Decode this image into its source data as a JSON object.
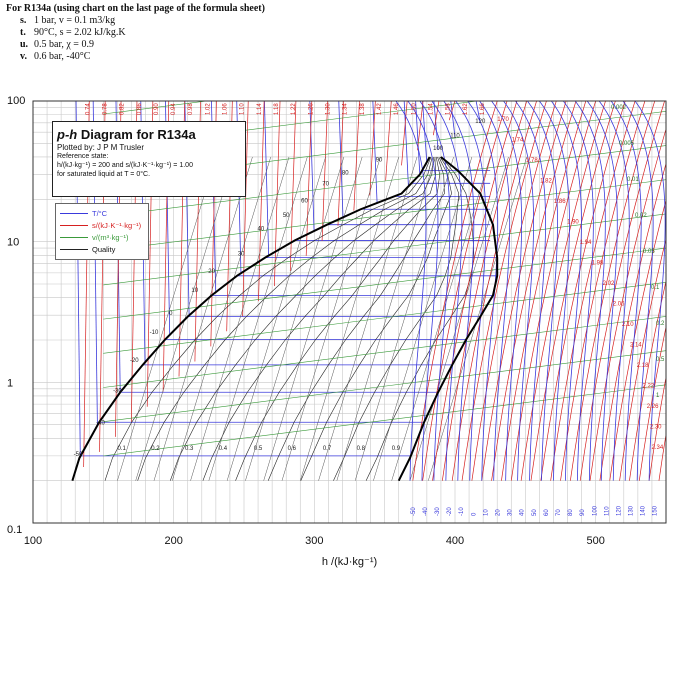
{
  "header": {
    "title": "For R134a (using chart on the last page of the formula sheet)",
    "questions": [
      {
        "letter": "s.",
        "text": "1 bar, v = 0.1 m3/kg"
      },
      {
        "letter": "t.",
        "text": "90°C, s = 2.02 kJ/kg.K"
      },
      {
        "letter": "u.",
        "text": "0.5 bar, χ = 0.9"
      },
      {
        "letter": "v.",
        "text": "0.6 bar, -40°C"
      }
    ]
  },
  "legend": {
    "title_italic": "p-h",
    "title_rest": " Diagram for R134a",
    "plotted_by": "Plotted by: J P M Trusler",
    "reference_state": "Reference state:",
    "reference_line1": "h/(kJ·kg⁻¹) = 200 and s/(kJ·K⁻¹·kg⁻¹) = 1.00",
    "reference_line2": "for saturated liquid at T = 0°C."
  },
  "key": {
    "entries": [
      {
        "label": "T/°C",
        "color": "#3a3adc"
      },
      {
        "label": "s/(kJ·K⁻¹·kg⁻¹)",
        "color": "#d62020"
      },
      {
        "label": "v/(m³·kg⁻¹)",
        "color": "#3a9a3a"
      },
      {
        "label": "Quality",
        "color": "#222222"
      }
    ]
  },
  "chart_data": {
    "type": "line",
    "title": "p-h Diagram for R134a",
    "xlabel": "h /(kJ·kg⁻¹)",
    "ylabel": "",
    "xlim": [
      100,
      550
    ],
    "ylim": [
      0.1,
      100
    ],
    "yscale": "log",
    "grid": true,
    "x_ticks": [
      100,
      200,
      300,
      400,
      500
    ],
    "x_tick_labels": [
      "100",
      "200",
      "300",
      "400",
      "500"
    ],
    "y_ticks": [
      0.1,
      1,
      10,
      100
    ],
    "y_tick_labels": [
      "0.1",
      "1",
      "10",
      "100"
    ],
    "colors": {
      "saturation": "#000000",
      "isotherm": "#3a3adc",
      "isentrope": "#d62020",
      "isochore": "#3a9a3a",
      "quality": "#222222"
    },
    "saturation_dome": {
      "liquid": {
        "h": [
          128,
          133,
          147,
          162,
          178,
          194,
          210,
          227,
          245,
          265,
          286,
          309,
          333,
          362,
          375,
          382
        ],
        "p": [
          0.2,
          0.29,
          0.52,
          0.85,
          1.33,
          2.02,
          2.93,
          4.15,
          5.72,
          7.7,
          10.2,
          13.2,
          17.0,
          22.0,
          30.0,
          40.0
        ]
      },
      "vapor": {
        "h": [
          360,
          368,
          378,
          388,
          398,
          408,
          418,
          427,
          430,
          430,
          427,
          418,
          402,
          390
        ],
        "p": [
          0.2,
          0.29,
          0.52,
          0.85,
          1.33,
          2.02,
          2.93,
          4.15,
          5.72,
          7.7,
          13.2,
          22.0,
          32.0,
          40.0
        ]
      },
      "critical_point": {
        "h": 390,
        "p": 40.6
      }
    },
    "isotherm_labels": {
      "values": [
        "-50",
        "-40",
        "-30",
        "-20",
        "-10",
        "0",
        "10",
        "20",
        "30",
        "40",
        "50",
        "60",
        "70",
        "80",
        "90",
        "100",
        "110",
        "120"
      ],
      "h": [
        132,
        148,
        160,
        172,
        186,
        198,
        215,
        227,
        248,
        262,
        280,
        293,
        308,
        322,
        346,
        388,
        400,
        418
      ],
      "p": [
        0.3,
        0.5,
        0.85,
        1.4,
        2.2,
        3.0,
        4.4,
        6.0,
        8.0,
        12.0,
        15.0,
        19.0,
        25.0,
        30.0,
        37.0,
        45.0,
        55.0,
        70.0
      ]
    },
    "quality_labels": {
      "values": [
        "0.1",
        "0.2",
        "0.3",
        "0.4",
        "0.5",
        "0.6",
        "0.7",
        "0.8",
        "0.9"
      ],
      "h": [
        163,
        187,
        211,
        235,
        260,
        284,
        309,
        333,
        358
      ],
      "p": [
        0.33,
        0.33,
        0.33,
        0.33,
        0.33,
        0.33,
        0.33,
        0.33,
        0.33
      ]
    },
    "entropy_labels_top": [
      "0.74",
      "0.78",
      "0.82",
      "0.86",
      "0.90",
      "0.94",
      "0.98",
      "1.02",
      "1.06",
      "1.10",
      "1.14",
      "1.18",
      "1.22",
      "1.26",
      "1.30",
      "1.34",
      "1.38",
      "1.42",
      "1.46",
      "1.50",
      "1.54",
      "1.58",
      "1.62",
      "1.66"
    ],
    "entropy_labels_right": [
      "1.70",
      "1.74",
      "1.78",
      "1.82",
      "1.86",
      "1.90",
      "1.94",
      "1.98",
      "2.02",
      "2.06",
      "2.10",
      "2.14",
      "2.18",
      "2.22",
      "2.26",
      "2.30",
      "2.34"
    ],
    "volume_labels_right": [
      "0.002",
      "0.005",
      "0.01",
      "0.02",
      "0.05",
      "0.1",
      "0.2",
      "0.5",
      "1"
    ],
    "isotherm_labels_bottom": [
      "-50",
      "-40",
      "-30",
      "-20",
      "-10",
      "0",
      "10",
      "20",
      "30",
      "40",
      "50",
      "60",
      "70",
      "80",
      "90",
      "100",
      "110",
      "120",
      "130",
      "140",
      "150"
    ]
  }
}
